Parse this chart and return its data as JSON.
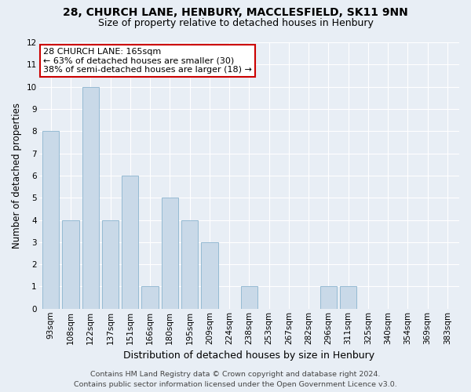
{
  "title": "28, CHURCH LANE, HENBURY, MACCLESFIELD, SK11 9NN",
  "subtitle": "Size of property relative to detached houses in Henbury",
  "xlabel": "Distribution of detached houses by size in Henbury",
  "ylabel": "Number of detached properties",
  "categories": [
    "93sqm",
    "108sqm",
    "122sqm",
    "137sqm",
    "151sqm",
    "166sqm",
    "180sqm",
    "195sqm",
    "209sqm",
    "224sqm",
    "238sqm",
    "253sqm",
    "267sqm",
    "282sqm",
    "296sqm",
    "311sqm",
    "325sqm",
    "340sqm",
    "354sqm",
    "369sqm",
    "383sqm"
  ],
  "values": [
    8,
    4,
    10,
    4,
    6,
    1,
    5,
    4,
    3,
    0,
    1,
    0,
    0,
    0,
    1,
    1,
    0,
    0,
    0,
    0,
    0
  ],
  "bar_color": "#c9d9e8",
  "bar_edge_color": "#8ab4ce",
  "annotation_title": "28 CHURCH LANE: 165sqm",
  "annotation_line1": "← 63% of detached houses are smaller (30)",
  "annotation_line2": "38% of semi-detached houses are larger (18) →",
  "annotation_box_facecolor": "#ffffff",
  "annotation_box_edgecolor": "#cc0000",
  "ylim": [
    0,
    12
  ],
  "yticks": [
    0,
    1,
    2,
    3,
    4,
    5,
    6,
    7,
    8,
    9,
    10,
    11,
    12
  ],
  "footer1": "Contains HM Land Registry data © Crown copyright and database right 2024.",
  "footer2": "Contains public sector information licensed under the Open Government Licence v3.0.",
  "background_color": "#e8eef5",
  "plot_bg_color": "#e8eef5",
  "grid_color": "#ffffff",
  "title_fontsize": 10,
  "subtitle_fontsize": 9,
  "xlabel_fontsize": 9,
  "ylabel_fontsize": 8.5,
  "tick_fontsize": 7.5,
  "annotation_fontsize": 8,
  "footer_fontsize": 6.8
}
